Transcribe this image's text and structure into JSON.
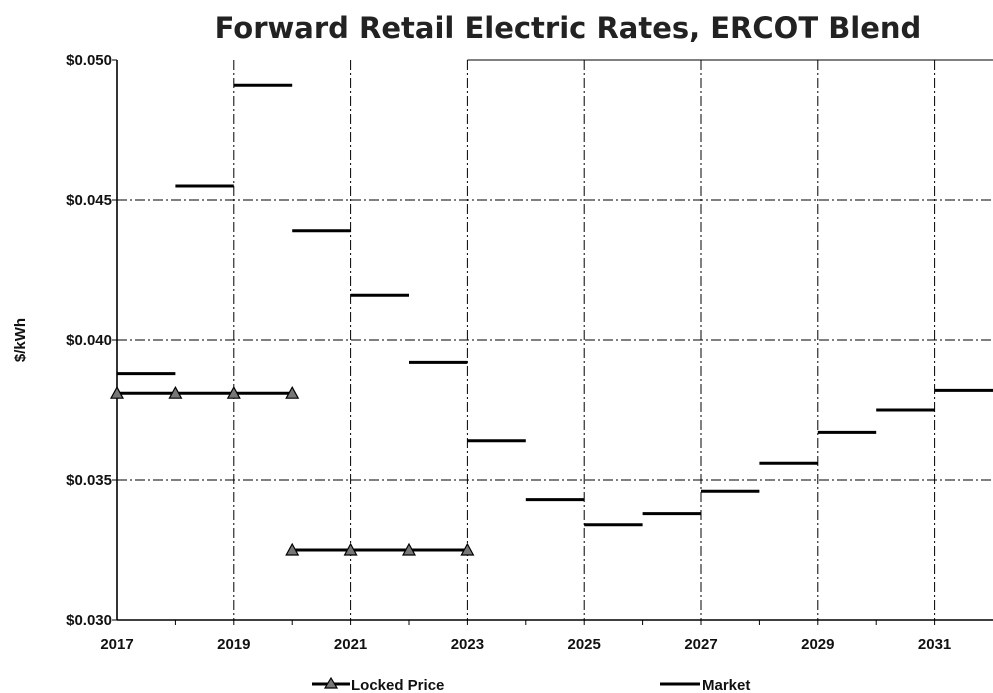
{
  "chart_data": {
    "type": "line",
    "title": "Forward Retail Electric Rates, ERCOT Blend",
    "xlabel": "",
    "ylabel": "$/kWh",
    "xlim": [
      2017,
      2032
    ],
    "ylim": [
      0.03,
      0.05
    ],
    "x_ticks": [
      "2017",
      "2019",
      "2021",
      "2023",
      "2025",
      "2027",
      "2029",
      "2031"
    ],
    "y_ticks": [
      "$0.030",
      "$0.035",
      "$0.040",
      "$0.045",
      "$0.050"
    ],
    "grid": true,
    "legend_position": "bottom",
    "series": [
      {
        "name": "Locked Price",
        "style": "step-line-with-triangle-markers",
        "segments": [
          {
            "x_start": 2017,
            "x_end": 2020,
            "value": 0.0381
          },
          {
            "x_start": 2020,
            "x_end": 2023,
            "value": 0.0325
          }
        ],
        "markers": [
          {
            "x": 2017,
            "value": 0.0381
          },
          {
            "x": 2018,
            "value": 0.0381
          },
          {
            "x": 2019,
            "value": 0.0381
          },
          {
            "x": 2020,
            "value": 0.0381
          },
          {
            "x": 2020,
            "value": 0.0325
          },
          {
            "x": 2021,
            "value": 0.0325
          },
          {
            "x": 2022,
            "value": 0.0325
          },
          {
            "x": 2023,
            "value": 0.0325
          }
        ]
      },
      {
        "name": "Market",
        "style": "annual-segments",
        "segments": [
          {
            "x_start": 2017,
            "x_end": 2018,
            "value": 0.0388
          },
          {
            "x_start": 2018,
            "x_end": 2019,
            "value": 0.0455
          },
          {
            "x_start": 2019,
            "x_end": 2020,
            "value": 0.0491
          },
          {
            "x_start": 2020,
            "x_end": 2021,
            "value": 0.0439
          },
          {
            "x_start": 2021,
            "x_end": 2022,
            "value": 0.0416
          },
          {
            "x_start": 2022,
            "x_end": 2023,
            "value": 0.0392
          },
          {
            "x_start": 2023,
            "x_end": 2024,
            "value": 0.0364
          },
          {
            "x_start": 2024,
            "x_end": 2025,
            "value": 0.0343
          },
          {
            "x_start": 2025,
            "x_end": 2026,
            "value": 0.0334
          },
          {
            "x_start": 2026,
            "x_end": 2027,
            "value": 0.0338
          },
          {
            "x_start": 2027,
            "x_end": 2028,
            "value": 0.0346
          },
          {
            "x_start": 2028,
            "x_end": 2029,
            "value": 0.0356
          },
          {
            "x_start": 2029,
            "x_end": 2030,
            "value": 0.0367
          },
          {
            "x_start": 2030,
            "x_end": 2031,
            "value": 0.0375
          },
          {
            "x_start": 2031,
            "x_end": 2032,
            "value": 0.0382
          }
        ]
      }
    ]
  }
}
